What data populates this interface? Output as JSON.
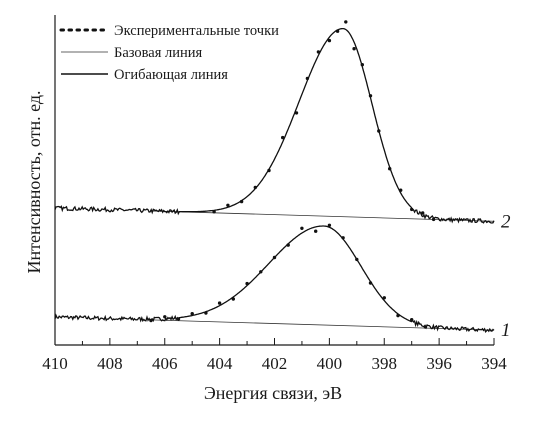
{
  "chart_data": {
    "type": "line",
    "xlabel": "Энергия связи, эВ",
    "ylabel": "Интенсивность, отн. ед.",
    "x_reversed": true,
    "xlim": [
      410,
      394
    ],
    "ylim": [
      0,
      1
    ],
    "x_ticks": [
      "410",
      "408",
      "406",
      "404",
      "402",
      "400",
      "398",
      "396",
      "394"
    ],
    "grid": false,
    "legend_position": "top-left",
    "legend": [
      {
        "label": "Экспериментальные точки",
        "style": "dotted"
      },
      {
        "label": "Базовая линия",
        "style": "thin-solid"
      },
      {
        "label": "Огибающая линия",
        "style": "solid"
      }
    ],
    "series_groups": [
      {
        "label": "1",
        "baseline_offset": 0.07,
        "baseline_start": 0.085,
        "baseline_end": 0.045,
        "peak_center": 400.2,
        "peak_height": 0.3,
        "sigma_low": 2.0,
        "sigma_high": 1.35,
        "points_x": [
          406.5,
          406.0,
          405.5,
          405.0,
          404.5,
          404.0,
          403.5,
          403.0,
          402.5,
          402.0,
          401.5,
          401.0,
          400.5,
          400.0,
          399.5,
          399.0,
          398.5,
          398.0,
          397.5,
          397.0,
          396.5
        ]
      },
      {
        "label": "2",
        "baseline_offset": 0.4,
        "baseline_start": 0.415,
        "baseline_end": 0.375,
        "peak_center": 399.5,
        "peak_height": 0.57,
        "sigma_low": 1.6,
        "sigma_high": 1.05,
        "points_x": [
          404.2,
          403.7,
          403.2,
          402.7,
          402.2,
          401.7,
          401.2,
          400.8,
          400.4,
          400.0,
          399.7,
          399.4,
          399.1,
          398.8,
          398.5,
          398.2,
          397.8,
          397.4,
          397.0,
          396.6,
          396.2
        ]
      }
    ]
  }
}
